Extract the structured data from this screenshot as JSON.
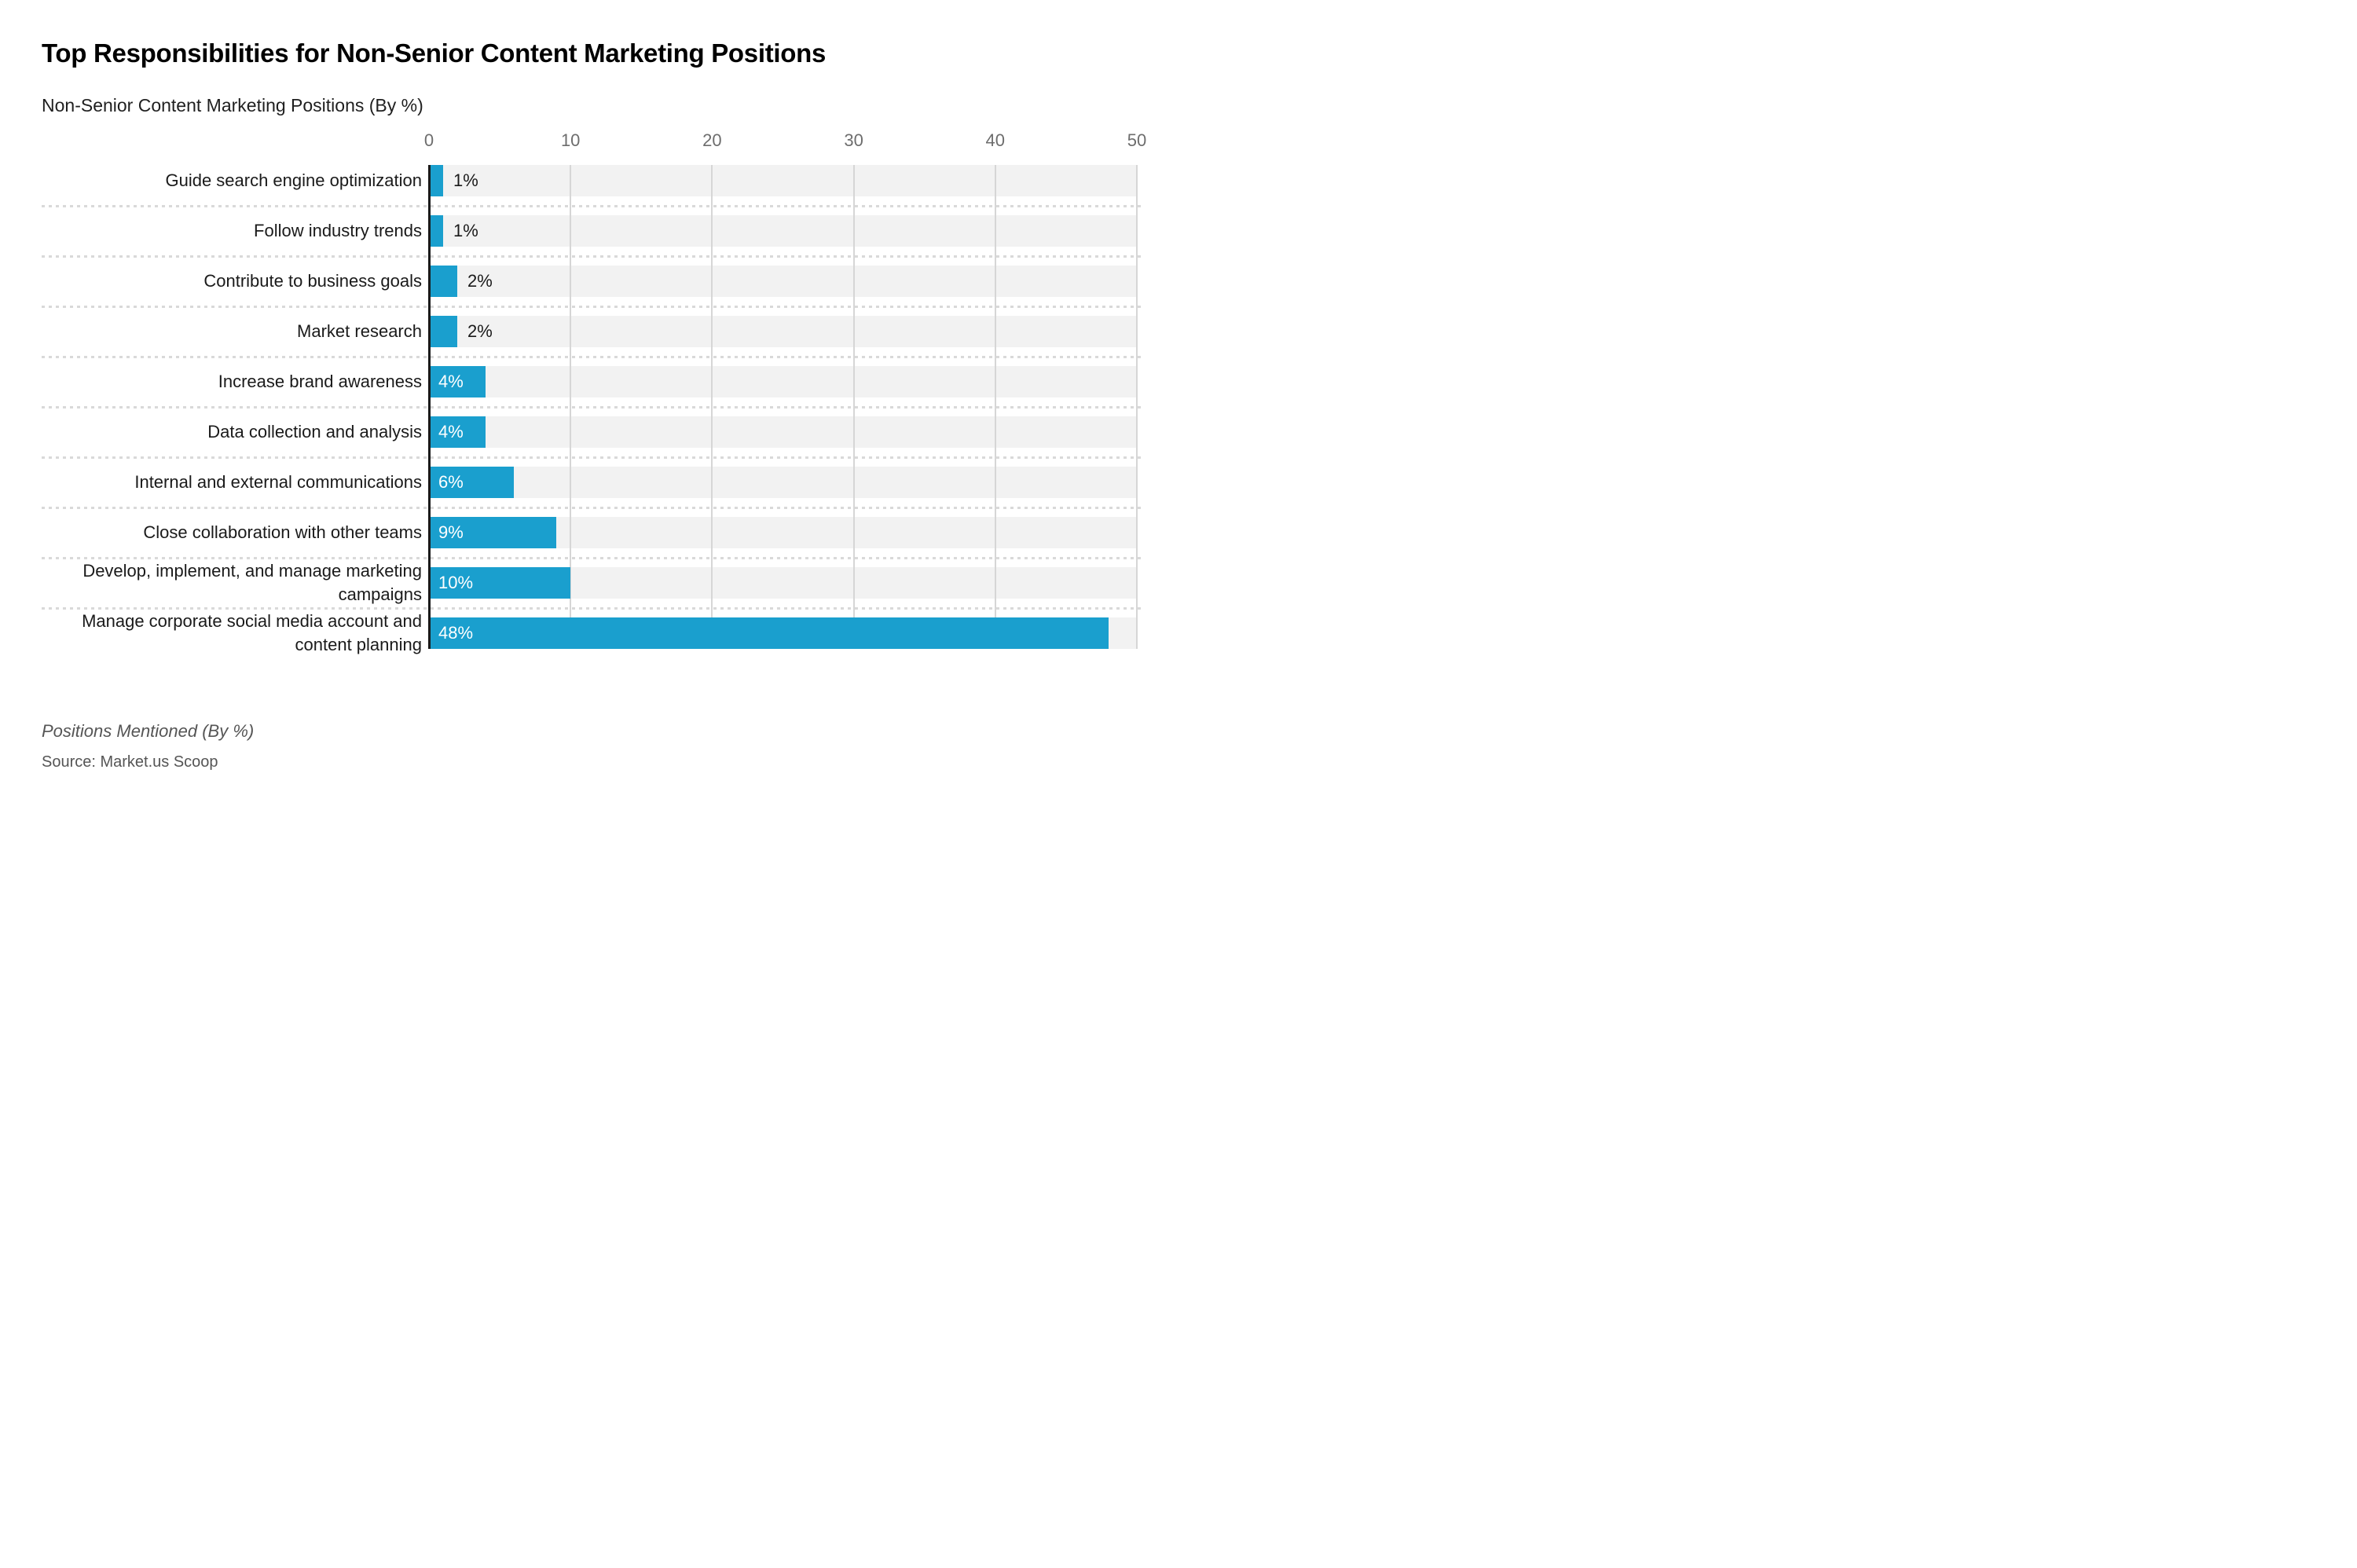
{
  "footer": {
    "note": "Positions Mentioned (By %)",
    "source": "Source: Market.us Scoop"
  },
  "colors": {
    "bar": "#1a9fce",
    "row_background": "#f2f2f2",
    "gridline": "#d6d6d6",
    "axis_line": "#1a1a1a",
    "tick_label": "#6d6d6d",
    "category_label": "#1a1a1a",
    "value_inside": "#ffffff",
    "value_outside": "#1a1a1a",
    "separator": "#d9d9d9",
    "title": "#000000",
    "subtitle": "#1f1f1f",
    "footer": "#555555"
  },
  "chart_data": {
    "type": "bar",
    "orientation": "horizontal",
    "title": "Top Responsibilities for Non-Senior Content Marketing Positions",
    "subtitle": "Non-Senior Content Marketing Positions (By %)",
    "categories": [
      "Guide search engine optimization",
      "Follow industry trends",
      "Contribute to business goals",
      "Market research",
      "Increase brand awareness",
      "Data collection and analysis",
      "Internal and external communications",
      "Close collaboration with other teams",
      "Develop, implement, and manage marketing campaigns",
      "Manage corporate social media account and content planning"
    ],
    "values": [
      1,
      1,
      2,
      2,
      4,
      4,
      6,
      9,
      10,
      48
    ],
    "value_labels": [
      "1%",
      "1%",
      "2%",
      "2%",
      "4%",
      "4%",
      "6%",
      "9%",
      "10%",
      "48%"
    ],
    "xlim": [
      0,
      50
    ],
    "x_ticks": [
      0,
      10,
      20,
      30,
      40,
      50
    ],
    "grid": "vertical",
    "legend": "none",
    "value_label_inside_threshold": 4
  }
}
